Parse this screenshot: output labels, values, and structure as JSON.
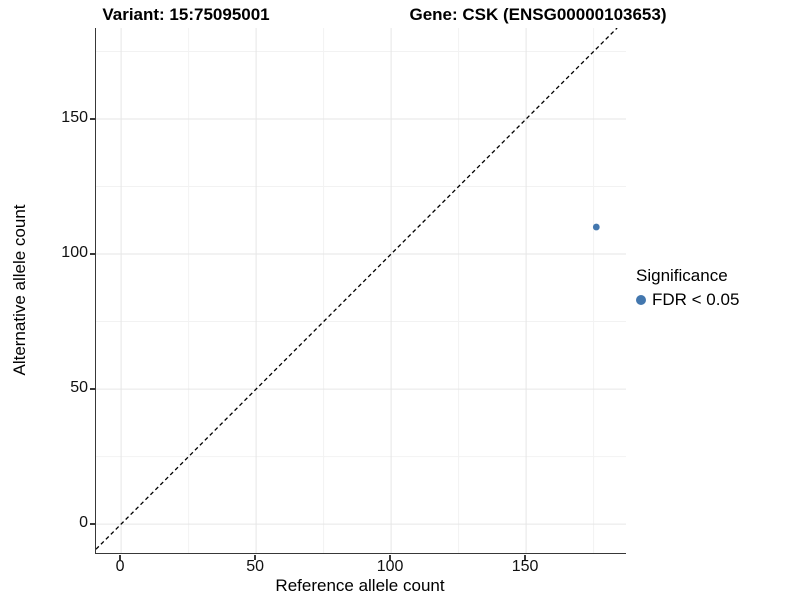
{
  "titles": {
    "variant": "Variant: 15:75095001",
    "gene": "Gene: CSK (ENSG00000103653)"
  },
  "axes": {
    "x": {
      "label": "Reference allele count",
      "ticks": [
        "0",
        "50",
        "100",
        "150"
      ]
    },
    "y": {
      "label": "Alternative allele count",
      "ticks": [
        "0",
        "50",
        "100",
        "150"
      ]
    }
  },
  "legend": {
    "title": "Significance",
    "items": [
      {
        "label": "FDR < 0.05",
        "color": "#4377AE"
      }
    ]
  },
  "chart_data": {
    "type": "scatter",
    "title_left": "Variant: 15:75095001",
    "title_right": "Gene: CSK (ENSG00000103653)",
    "xlabel": "Reference allele count",
    "ylabel": "Alternative allele count",
    "xlim": [
      -9.3,
      187.0
    ],
    "ylim": [
      -10.7,
      183.7
    ],
    "x_major_ticks": [
      0,
      50,
      100,
      150
    ],
    "y_major_ticks": [
      0,
      50,
      100,
      150
    ],
    "x_minor_ticks": [
      25,
      75,
      125,
      175
    ],
    "y_minor_ticks": [
      25,
      75,
      125,
      175
    ],
    "grid": true,
    "legend_position": "right",
    "identity_line": {
      "type": "dashed",
      "slope": 1,
      "intercept": 0,
      "color": "#000000"
    },
    "series": [
      {
        "name": "FDR < 0.05",
        "color": "#4377AE",
        "points": [
          {
            "x": 176,
            "y": 110
          }
        ]
      }
    ]
  },
  "colors": {
    "point": "#4377AE",
    "grid_major": "#E6E6E6",
    "grid_minor": "#F2F2F2",
    "axis_line": "#383838",
    "background": "#FFFFFF"
  }
}
